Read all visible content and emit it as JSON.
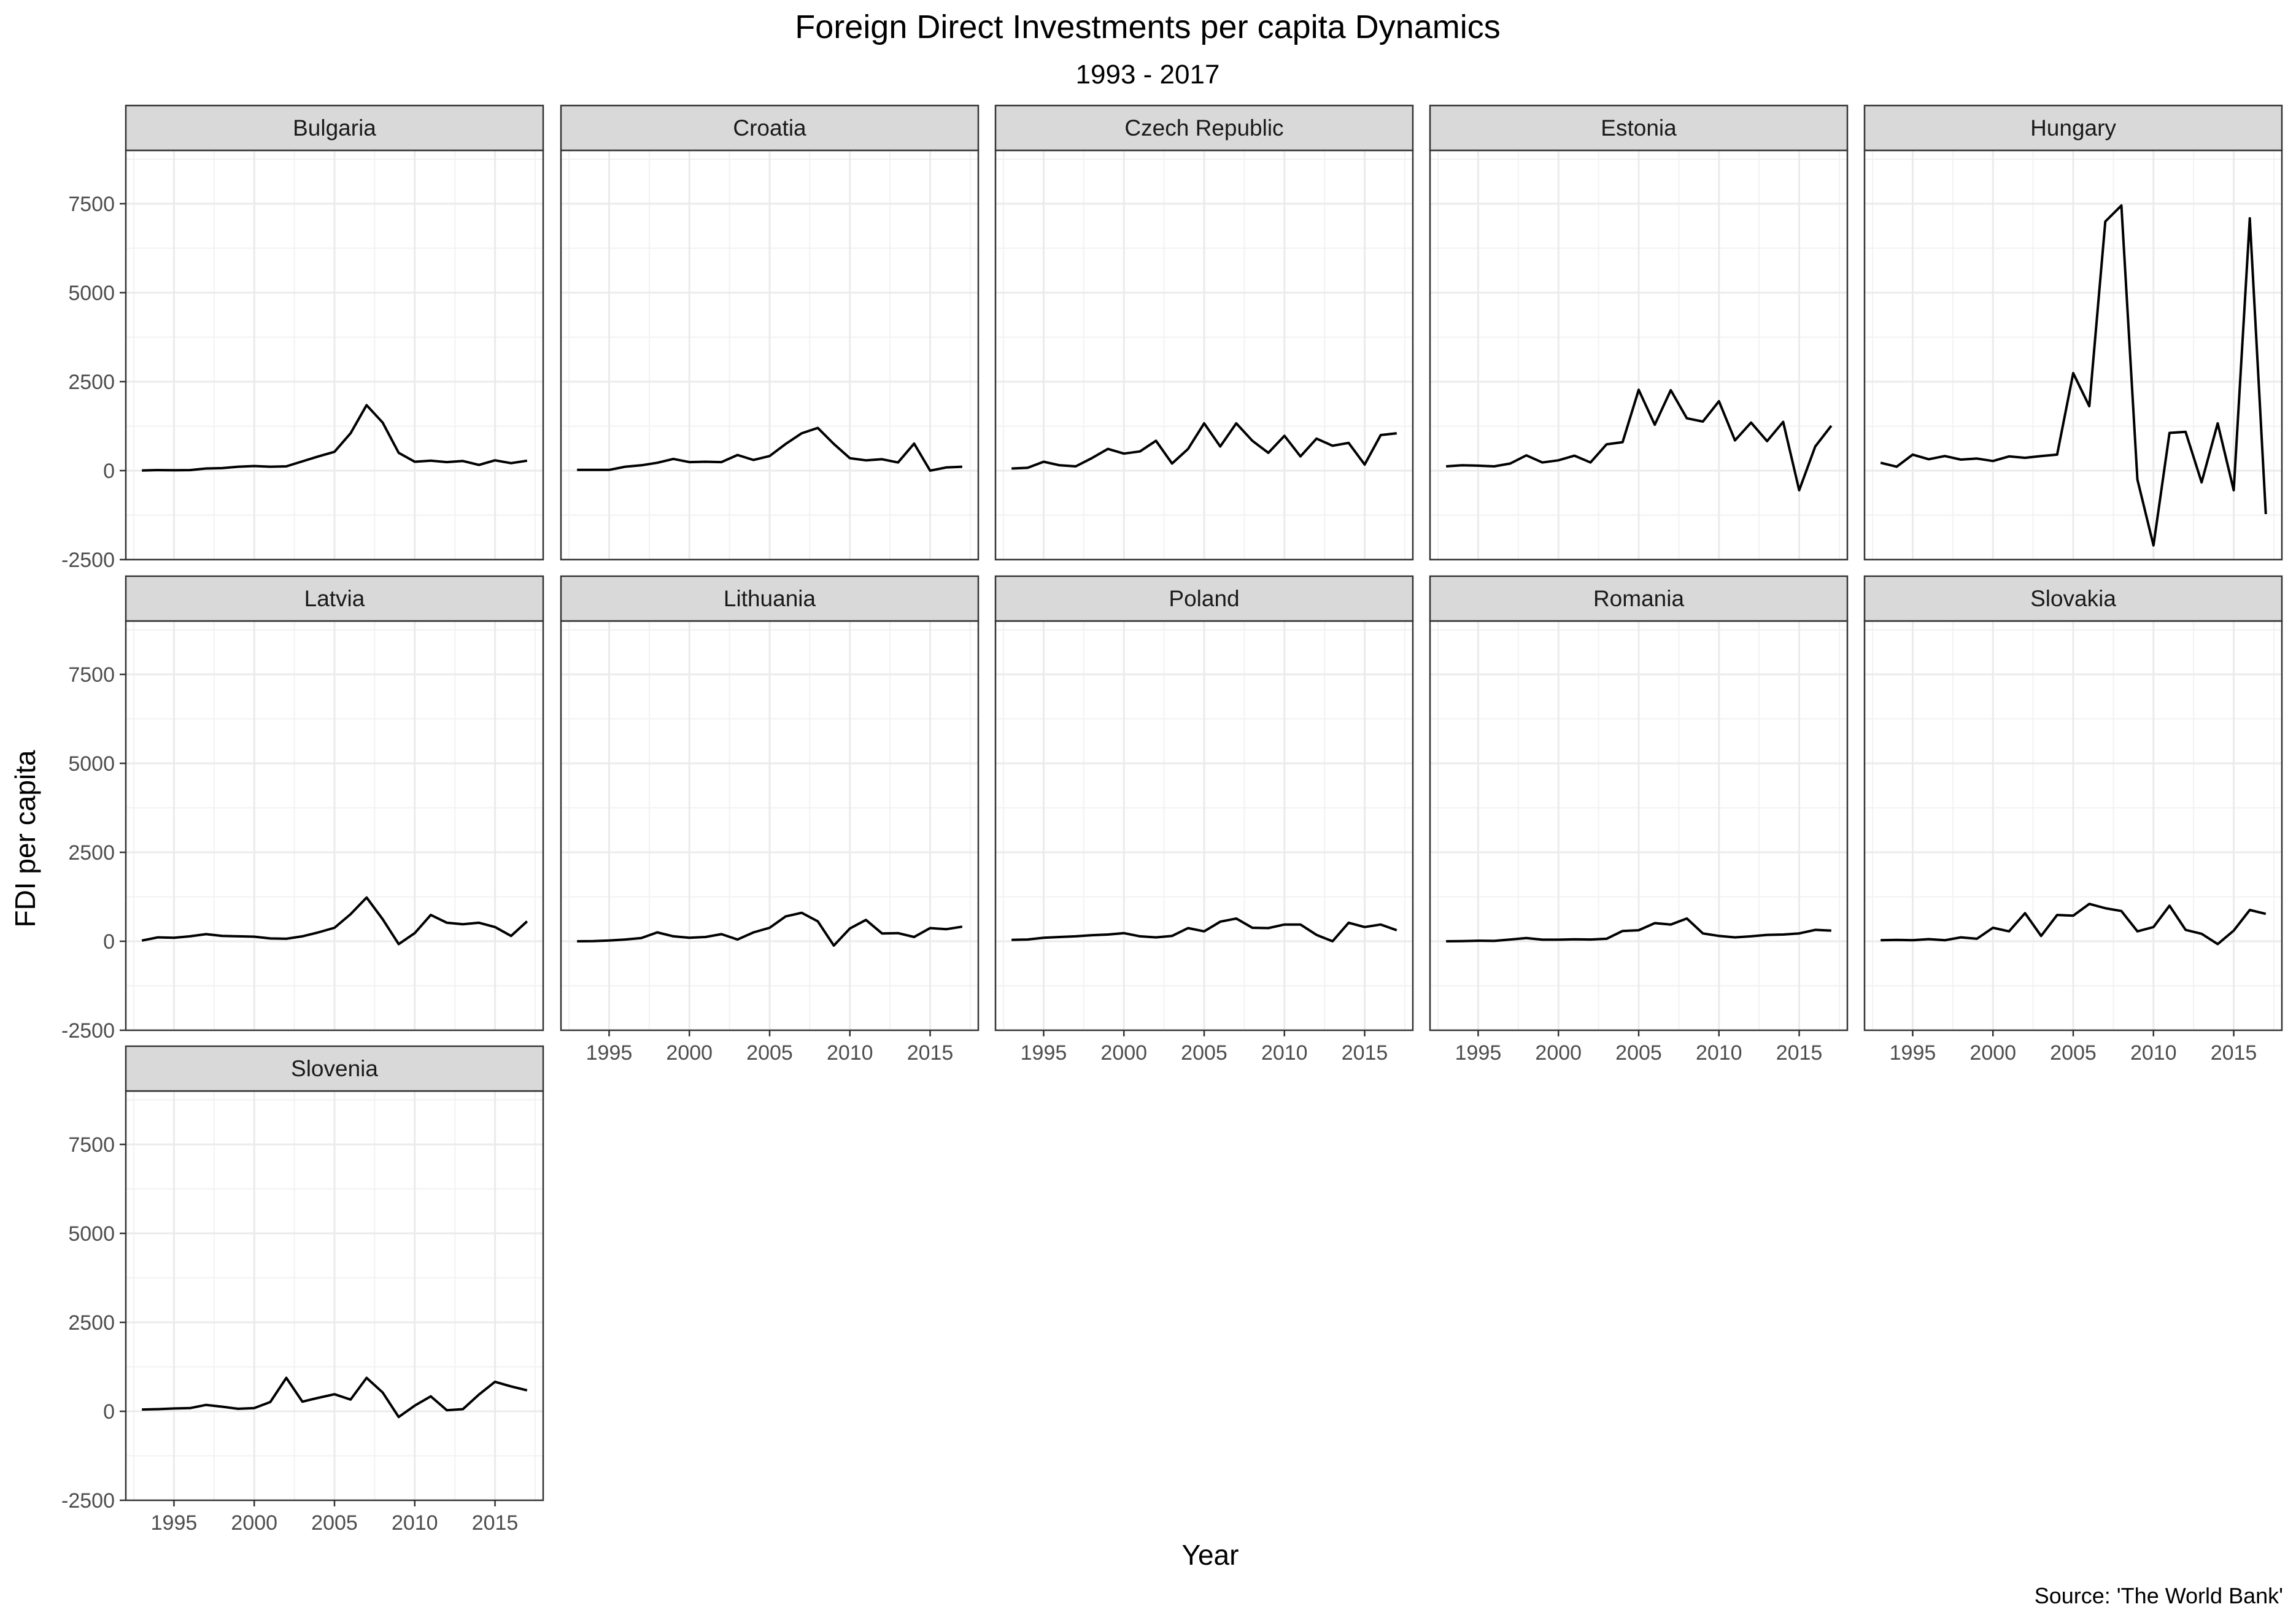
{
  "chart_data": {
    "type": "line",
    "title": "Foreign Direct Investments per capita Dynamics",
    "subtitle": "1993 - 2017",
    "xlabel": "Year",
    "ylabel": "FDI per capita",
    "caption": "Source: 'The World Bank'",
    "xlim": [
      1992,
      2018
    ],
    "ylim": [
      -2500,
      9000
    ],
    "x_ticks": [
      "1995",
      "2000",
      "2005",
      "2010",
      "2015"
    ],
    "y_ticks": [
      "-2500",
      "0",
      "2500",
      "5000",
      "7500"
    ],
    "grid": true,
    "x": [
      1993,
      1994,
      1995,
      1996,
      1997,
      1998,
      1999,
      2000,
      2001,
      2002,
      2003,
      2004,
      2005,
      2006,
      2007,
      2008,
      2009,
      2010,
      2011,
      2012,
      2013,
      2014,
      2015,
      2016,
      2017
    ],
    "series": [
      {
        "name": "Bulgaria",
        "values": [
          5,
          15,
          10,
          15,
          60,
          70,
          110,
          130,
          110,
          120,
          260,
          400,
          530,
          1050,
          1840,
          1350,
          500,
          250,
          280,
          240,
          270,
          160,
          290,
          210,
          280
        ]
      },
      {
        "name": "Croatia",
        "values": [
          20,
          20,
          20,
          110,
          150,
          220,
          330,
          240,
          250,
          240,
          440,
          300,
          410,
          750,
          1050,
          1200,
          750,
          350,
          290,
          320,
          230,
          760,
          0,
          90,
          110
        ]
      },
      {
        "name": "Czech Republic",
        "values": [
          60,
          80,
          250,
          150,
          120,
          350,
          610,
          480,
          540,
          840,
          200,
          610,
          1330,
          680,
          1330,
          840,
          500,
          980,
          400,
          900,
          700,
          780,
          170,
          1000,
          1050
        ]
      },
      {
        "name": "Estonia",
        "values": [
          120,
          150,
          140,
          120,
          200,
          430,
          230,
          290,
          420,
          230,
          740,
          800,
          2270,
          1290,
          2260,
          1470,
          1380,
          1950,
          850,
          1350,
          830,
          1370,
          -550,
          680,
          1260
        ]
      },
      {
        "name": "Hungary",
        "values": [
          220,
          110,
          450,
          320,
          410,
          310,
          340,
          270,
          400,
          360,
          410,
          450,
          2740,
          1810,
          7000,
          7450,
          -250,
          -2100,
          1060,
          1090,
          -330,
          1330,
          -550,
          7090,
          -1220
        ]
      },
      {
        "name": "Latvia",
        "values": [
          20,
          110,
          100,
          140,
          200,
          150,
          140,
          130,
          80,
          70,
          140,
          250,
          380,
          760,
          1230,
          620,
          -80,
          230,
          740,
          520,
          480,
          520,
          400,
          150,
          560
        ]
      },
      {
        "name": "Lithuania",
        "values": [
          0,
          5,
          20,
          50,
          90,
          250,
          140,
          100,
          120,
          200,
          50,
          250,
          380,
          700,
          800,
          560,
          -120,
          360,
          600,
          220,
          230,
          120,
          370,
          340,
          410
        ]
      },
      {
        "name": "Poland",
        "values": [
          40,
          50,
          100,
          120,
          140,
          170,
          190,
          230,
          140,
          110,
          150,
          370,
          280,
          550,
          640,
          380,
          370,
          470,
          470,
          180,
          0,
          520,
          400,
          470,
          310
        ]
      },
      {
        "name": "Romania",
        "values": [
          0,
          5,
          15,
          10,
          50,
          90,
          45,
          45,
          55,
          50,
          70,
          290,
          310,
          510,
          470,
          640,
          220,
          150,
          110,
          140,
          180,
          190,
          220,
          320,
          300
        ]
      },
      {
        "name": "Slovakia",
        "values": [
          30,
          40,
          30,
          60,
          30,
          110,
          70,
          380,
          280,
          790,
          150,
          740,
          720,
          1050,
          930,
          850,
          280,
          400,
          1000,
          320,
          210,
          -80,
          300,
          880,
          770
        ]
      },
      {
        "name": "Slovenia",
        "values": [
          50,
          60,
          80,
          90,
          180,
          130,
          70,
          90,
          260,
          940,
          270,
          380,
          480,
          330,
          940,
          530,
          -160,
          160,
          420,
          30,
          60,
          470,
          830,
          700,
          590
        ]
      }
    ]
  }
}
